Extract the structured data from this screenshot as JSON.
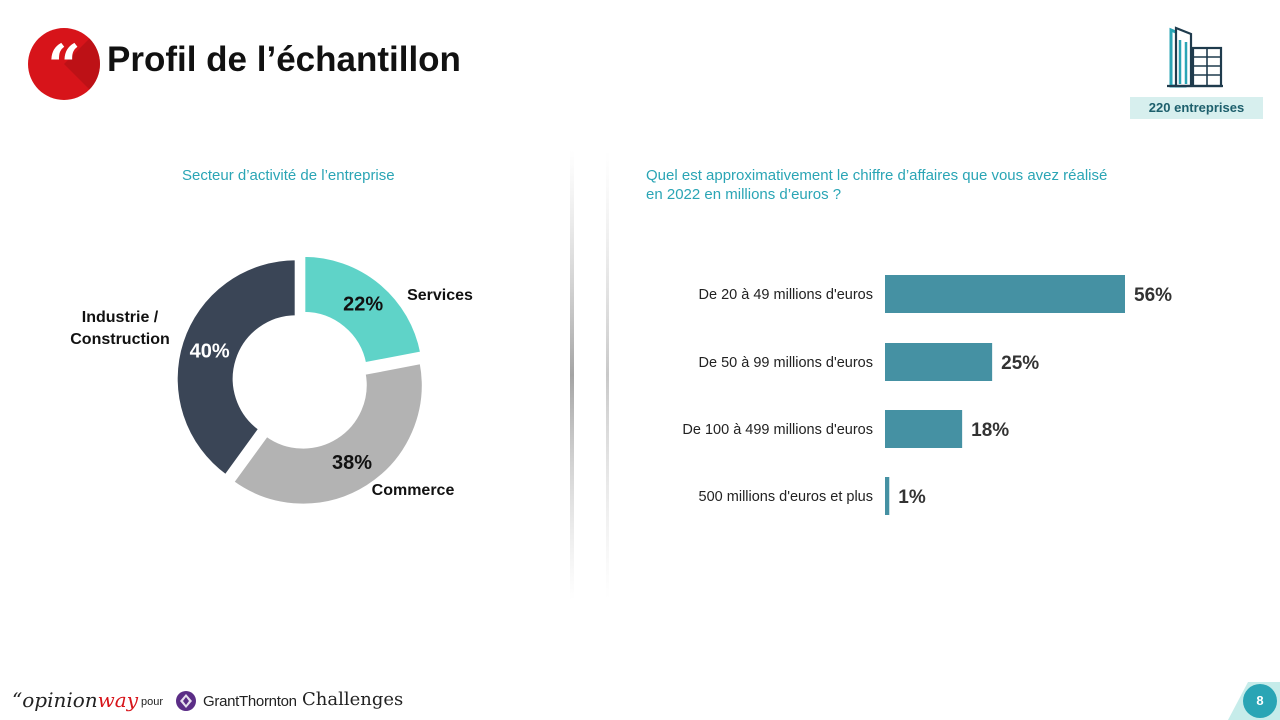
{
  "header": {
    "title": "Profil de l’échantillon",
    "quote_icon": "quote-icon",
    "building_icon": "building-icon",
    "sample_badge": "220 entreprises"
  },
  "colors": {
    "accent": "#2aa5b5",
    "brand_red": "#d7141a",
    "bar": "#4591a3",
    "services": "#5fd3c8",
    "commerce": "#b3b3b3",
    "industrie": "#3a4556"
  },
  "chart_data": [
    {
      "type": "pie",
      "donut": true,
      "subtitle": "Secteur d’activité de l’entreprise",
      "labels": [
        "Services",
        "Commerce",
        "Industrie / Construction"
      ],
      "label_lines": [
        [
          "Services"
        ],
        [
          "Commerce"
        ],
        [
          "Industrie /",
          "Construction"
        ]
      ],
      "values": [
        22,
        38,
        40
      ],
      "value_labels": [
        "22%",
        "38%",
        "40%"
      ],
      "colors": [
        "#5fd3c8",
        "#b3b3b3",
        "#3a4556"
      ]
    },
    {
      "type": "bar",
      "orientation": "horizontal",
      "subtitle": "Quel est approximativement le chiffre d’affaires que vous avez réalisé en 2022 en millions d’euros ?",
      "categories": [
        "De 20 à 49 millions d'euros",
        "De 50 à 99 millions d'euros",
        "De 100 à 499 millions d'euros",
        "500 millions d'euros et plus"
      ],
      "values": [
        56,
        25,
        18,
        1
      ],
      "value_labels": [
        "56%",
        "25%",
        "18%",
        "1%"
      ],
      "color": "#4591a3"
    }
  ],
  "footer": {
    "logo_opinion": "“opinion",
    "logo_way": "way",
    "pour": "pour",
    "grant_thornton": "GrantThornton",
    "challenges": "Challenges",
    "page_number": "8"
  }
}
